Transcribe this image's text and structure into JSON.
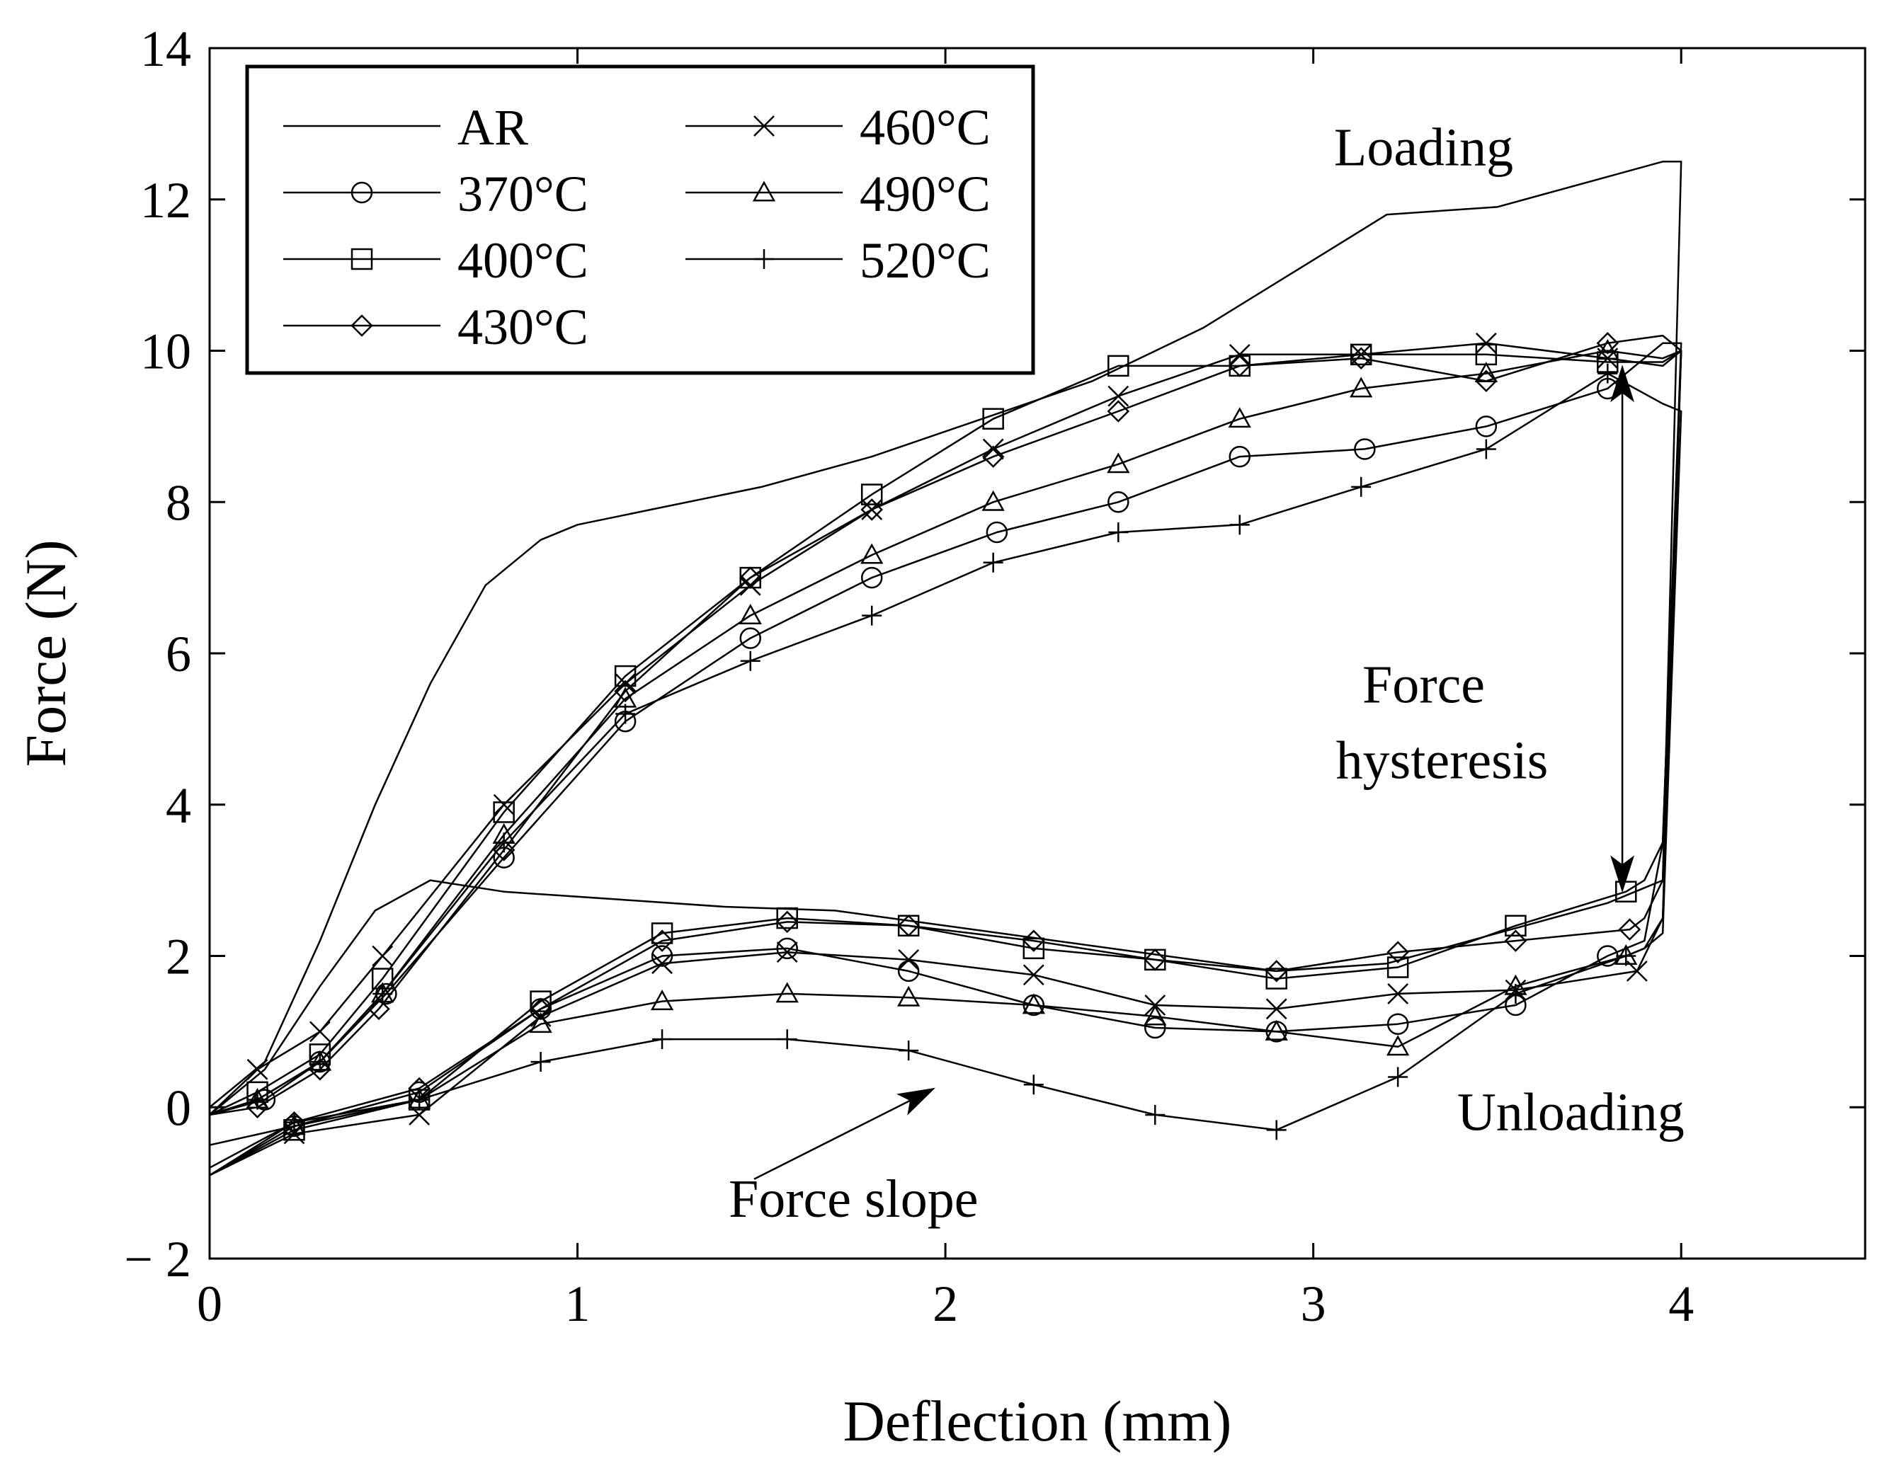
{
  "chart_data": {
    "type": "line",
    "title": "",
    "xlabel": "Deflection (mm)",
    "ylabel": "Force (N)",
    "xlim": [
      0,
      4.5
    ],
    "ylim": [
      -2,
      14
    ],
    "xticks": [
      0,
      1,
      2,
      3,
      4
    ],
    "yticks": [
      -2,
      0,
      2,
      4,
      6,
      8,
      10,
      12,
      14
    ],
    "ytick_labels": [
      "− 2",
      "0",
      "2",
      "4",
      "6",
      "8",
      "10",
      "12",
      "14"
    ],
    "legend_position": "top-left",
    "series": [
      {
        "name": "AR",
        "marker": "none",
        "loading_x": [
          0,
          0.15,
          0.3,
          0.45,
          0.6,
          0.75,
          0.9,
          1.0,
          1.2,
          1.5,
          1.8,
          2.1,
          2.4,
          2.7,
          3.0,
          3.2,
          3.5,
          3.8,
          3.95,
          4.0
        ],
        "loading_y": [
          0,
          0.6,
          2.2,
          4.0,
          5.6,
          6.9,
          7.5,
          7.7,
          7.9,
          8.2,
          8.6,
          9.1,
          9.6,
          10.3,
          11.2,
          11.8,
          11.9,
          12.3,
          12.5,
          12.5
        ],
        "unloading_x": [
          4.0,
          3.95,
          3.9,
          3.8,
          3.5,
          3.2,
          2.9,
          2.6,
          2.3,
          2.0,
          1.7,
          1.4,
          1.1,
          0.8,
          0.6,
          0.45,
          0.3,
          0.15,
          0
        ],
        "unloading_y": [
          12.5,
          3.0,
          2.9,
          2.7,
          2.3,
          1.9,
          1.8,
          2.0,
          2.2,
          2.4,
          2.6,
          2.65,
          2.75,
          2.85,
          3.0,
          2.6,
          1.6,
          0.5,
          -0.1
        ]
      },
      {
        "name": "370°C",
        "marker": "circle",
        "loading_x": [
          0,
          0.15,
          0.3,
          0.48,
          0.8,
          1.13,
          1.47,
          1.8,
          2.14,
          2.47,
          2.8,
          3.14,
          3.47,
          3.8,
          3.95,
          4.0
        ],
        "loading_y": [
          -0.1,
          0.1,
          0.6,
          1.5,
          3.3,
          5.1,
          6.2,
          7.0,
          7.6,
          8.0,
          8.6,
          8.7,
          9.0,
          9.5,
          10.1,
          10.1
        ],
        "unloading_x": [
          4.0,
          3.95,
          3.9,
          3.8,
          3.55,
          3.23,
          2.9,
          2.57,
          2.24,
          1.9,
          1.57,
          1.23,
          0.9,
          0.57,
          0.23,
          0
        ],
        "unloading_y": [
          10.1,
          3.5,
          2.2,
          2.0,
          1.35,
          1.1,
          1.0,
          1.05,
          1.35,
          1.8,
          2.1,
          2.0,
          1.3,
          0.2,
          -0.25,
          -0.5
        ]
      },
      {
        "name": "400°C",
        "marker": "square",
        "loading_x": [
          0,
          0.13,
          0.3,
          0.47,
          0.8,
          1.13,
          1.47,
          1.8,
          2.13,
          2.47,
          2.8,
          3.13,
          3.47,
          3.8,
          3.95,
          4.0
        ],
        "loading_y": [
          -0.1,
          0.2,
          0.7,
          1.7,
          3.9,
          5.7,
          7.0,
          8.1,
          9.1,
          9.8,
          9.8,
          9.95,
          9.95,
          9.85,
          9.85,
          10.0
        ],
        "unloading_x": [
          4.0,
          3.95,
          3.9,
          3.85,
          3.55,
          3.23,
          2.9,
          2.57,
          2.24,
          1.9,
          1.57,
          1.23,
          0.9,
          0.57,
          0.23,
          0
        ],
        "unloading_y": [
          10.0,
          3.5,
          3.0,
          2.85,
          2.4,
          1.85,
          1.7,
          1.95,
          2.1,
          2.4,
          2.5,
          2.3,
          1.4,
          0.1,
          -0.3,
          -0.9
        ]
      },
      {
        "name": "430°C",
        "marker": "diamond",
        "loading_x": [
          0,
          0.13,
          0.3,
          0.46,
          0.8,
          1.13,
          1.47,
          1.8,
          2.13,
          2.47,
          2.8,
          3.13,
          3.47,
          3.8,
          3.95,
          4.0
        ],
        "loading_y": [
          -0.1,
          0.0,
          0.5,
          1.3,
          3.4,
          5.5,
          7.0,
          7.9,
          8.6,
          9.2,
          9.8,
          9.9,
          9.6,
          10.1,
          10.2,
          10.0
        ],
        "unloading_x": [
          4.0,
          3.95,
          3.9,
          3.86,
          3.55,
          3.23,
          2.9,
          2.57,
          2.24,
          1.9,
          1.57,
          1.23,
          0.9,
          0.57,
          0.23,
          0
        ],
        "unloading_y": [
          10.0,
          3.0,
          2.5,
          2.35,
          2.2,
          2.05,
          1.8,
          1.95,
          2.2,
          2.4,
          2.45,
          2.2,
          1.3,
          0.25,
          -0.2,
          -0.8
        ]
      },
      {
        "name": "460°C",
        "marker": "x",
        "loading_x": [
          0,
          0.13,
          0.3,
          0.47,
          0.8,
          1.13,
          1.47,
          1.8,
          2.13,
          2.47,
          2.8,
          3.13,
          3.47,
          3.8,
          3.95,
          4.0
        ],
        "loading_y": [
          -0.1,
          0.5,
          1.0,
          2.0,
          4.0,
          5.6,
          6.9,
          7.9,
          8.7,
          9.4,
          9.95,
          9.95,
          10.1,
          9.9,
          9.8,
          10.0
        ],
        "unloading_x": [
          4.0,
          3.95,
          3.9,
          3.88,
          3.55,
          3.23,
          2.9,
          2.57,
          2.24,
          1.9,
          1.57,
          1.23,
          0.9,
          0.57,
          0.23,
          0
        ],
        "unloading_y": [
          10.0,
          2.5,
          2.0,
          1.8,
          1.55,
          1.5,
          1.3,
          1.35,
          1.75,
          1.95,
          2.05,
          1.9,
          1.2,
          -0.1,
          -0.35,
          -0.9
        ]
      },
      {
        "name": "490°C",
        "marker": "triangle",
        "loading_x": [
          0,
          0.13,
          0.3,
          0.47,
          0.8,
          1.13,
          1.47,
          1.8,
          2.13,
          2.47,
          2.8,
          3.13,
          3.47,
          3.8,
          3.95,
          4.0
        ],
        "loading_y": [
          -0.1,
          0.1,
          0.6,
          1.5,
          3.6,
          5.4,
          6.5,
          7.3,
          8.0,
          8.5,
          9.1,
          9.5,
          9.7,
          10.0,
          9.9,
          10.0
        ],
        "unloading_x": [
          4.0,
          3.95,
          3.9,
          3.85,
          3.55,
          3.23,
          2.9,
          2.57,
          2.24,
          1.9,
          1.57,
          1.23,
          0.9,
          0.57,
          0.23,
          0
        ],
        "unloading_y": [
          10.0,
          2.5,
          2.1,
          2.0,
          1.6,
          0.8,
          1.0,
          1.2,
          1.35,
          1.45,
          1.5,
          1.4,
          1.1,
          0.1,
          -0.25,
          -0.9
        ]
      },
      {
        "name": "520°C",
        "marker": "plus",
        "loading_x": [
          0,
          0.13,
          0.3,
          0.47,
          0.8,
          1.13,
          1.47,
          1.8,
          2.13,
          2.47,
          2.8,
          3.13,
          3.47,
          3.8,
          3.95,
          4.0
        ],
        "loading_y": [
          -0.1,
          0.1,
          0.6,
          1.5,
          3.5,
          5.2,
          5.9,
          6.5,
          7.2,
          7.6,
          7.7,
          8.2,
          8.7,
          9.7,
          9.3,
          9.2
        ],
        "unloading_x": [
          4.0,
          3.95,
          3.9,
          3.85,
          3.55,
          3.23,
          2.9,
          2.57,
          2.24,
          1.9,
          1.57,
          1.23,
          0.9,
          0.57,
          0.23,
          0
        ],
        "unloading_y": [
          9.2,
          2.3,
          2.1,
          2.0,
          1.5,
          0.4,
          -0.3,
          -0.1,
          0.3,
          0.75,
          0.9,
          0.9,
          0.6,
          0.1,
          -0.2,
          -0.9
        ]
      }
    ],
    "annotations": [
      {
        "text": "Loading",
        "x": 3.3,
        "y": 12.45
      },
      {
        "text": "Unloading",
        "x": 3.7,
        "y": -0.3
      },
      {
        "text": "Force",
        "x": 3.3,
        "y": 5.35
      },
      {
        "text": "hysteresis",
        "x": 3.35,
        "y": 4.35
      },
      {
        "text": "Force slope",
        "x": 1.75,
        "y": -1.45
      }
    ],
    "arrows": [
      {
        "name": "force-hysteresis-arrow",
        "from": [
          3.84,
          6.0
        ],
        "to_top": [
          3.84,
          9.8
        ],
        "to_bottom": [
          3.84,
          2.85
        ]
      },
      {
        "name": "force-slope-arrow",
        "from": [
          1.48,
          -0.95
        ],
        "to": [
          1.97,
          0.25
        ]
      }
    ]
  }
}
